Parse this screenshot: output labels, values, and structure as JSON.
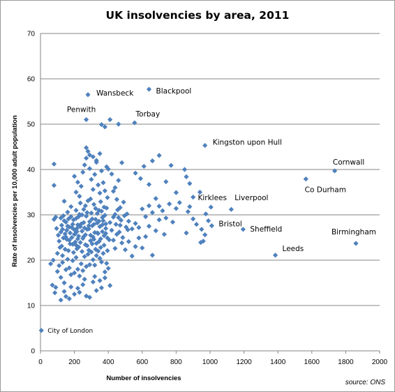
{
  "chart_data": {
    "type": "scatter",
    "title": "UK insolvencies by area, 2011",
    "xlabel": "Number of insolvencies",
    "ylabel": "Rate of insolvencies per 10,000 adult population",
    "source": "source: ONS",
    "xlim": [
      0,
      2000
    ],
    "ylim": [
      0,
      70
    ],
    "x_ticks": [
      0,
      200,
      400,
      600,
      800,
      1000,
      1200,
      1400,
      1600,
      1800,
      2000
    ],
    "y_ticks": [
      0,
      10,
      20,
      30,
      40,
      50,
      60,
      70
    ],
    "grid": "horizontal",
    "marker_color": "#4F81BD",
    "labeled_points": [
      {
        "label": "City of London",
        "x": 5,
        "y": 4.5
      },
      {
        "label": "Wansbeck",
        "x": 280,
        "y": 56.5
      },
      {
        "label": "Blackpool",
        "x": 640,
        "y": 57.7
      },
      {
        "label": "Penwith",
        "x": 270,
        "y": 51.0
      },
      {
        "label": "Torbay",
        "x": 555,
        "y": 50.3
      },
      {
        "label": "Kingston upon Hull",
        "x": 970,
        "y": 45.3
      },
      {
        "label": "Cornwall",
        "x": 1735,
        "y": 39.7
      },
      {
        "label": "Co Durham",
        "x": 1565,
        "y": 37.9
      },
      {
        "label": "Kirklees",
        "x": 1005,
        "y": 31.7
      },
      {
        "label": "Liverpool",
        "x": 1125,
        "y": 31.2
      },
      {
        "label": "Bristol",
        "x": 1010,
        "y": 27.6
      },
      {
        "label": "Sheffield",
        "x": 1195,
        "y": 26.8
      },
      {
        "label": "Birmingham",
        "x": 1860,
        "y": 23.7
      },
      {
        "label": "Leeds",
        "x": 1385,
        "y": 21.1
      }
    ],
    "points": [
      [
        80,
        36.5
      ],
      [
        80,
        41.2
      ],
      [
        75,
        20.0
      ],
      [
        60,
        19.2
      ],
      [
        70,
        14.5
      ],
      [
        90,
        14.0
      ],
      [
        85,
        12.8
      ],
      [
        80,
        29.0
      ],
      [
        90,
        29.5
      ],
      [
        100,
        21.5
      ],
      [
        95,
        27.0
      ],
      [
        105,
        25.5
      ],
      [
        110,
        24.2
      ],
      [
        115,
        22.8
      ],
      [
        120,
        26.2
      ],
      [
        125,
        23.1
      ],
      [
        130,
        21.0
      ],
      [
        135,
        29.8
      ],
      [
        140,
        33.0
      ],
      [
        145,
        25.8
      ],
      [
        150,
        28.4
      ],
      [
        155,
        24.6
      ],
      [
        160,
        30.6
      ],
      [
        165,
        22.1
      ],
      [
        170,
        27.3
      ],
      [
        175,
        26.0
      ],
      [
        180,
        31.8
      ],
      [
        185,
        25.0
      ],
      [
        190,
        23.5
      ],
      [
        195,
        28.9
      ],
      [
        200,
        26.7
      ],
      [
        205,
        24.0
      ],
      [
        210,
        29.2
      ],
      [
        215,
        22.5
      ],
      [
        220,
        27.8
      ],
      [
        225,
        25.3
      ],
      [
        230,
        30.1
      ],
      [
        235,
        23.9
      ],
      [
        240,
        28.0
      ],
      [
        245,
        26.4
      ],
      [
        250,
        24.8
      ],
      [
        255,
        31.2
      ],
      [
        260,
        27.1
      ],
      [
        265,
        25.6
      ],
      [
        270,
        29.7
      ],
      [
        275,
        23.2
      ],
      [
        280,
        33.1
      ],
      [
        285,
        26.9
      ],
      [
        290,
        28.5
      ],
      [
        295,
        24.3
      ],
      [
        300,
        30.4
      ],
      [
        305,
        27.6
      ],
      [
        310,
        25.1
      ],
      [
        315,
        32.3
      ],
      [
        320,
        26.1
      ],
      [
        325,
        29.0
      ],
      [
        330,
        23.7
      ],
      [
        335,
        28.2
      ],
      [
        340,
        25.9
      ],
      [
        345,
        31.0
      ],
      [
        350,
        27.4
      ],
      [
        355,
        24.7
      ],
      [
        360,
        30.8
      ],
      [
        365,
        26.3
      ],
      [
        370,
        28.7
      ],
      [
        375,
        25.4
      ],
      [
        380,
        29.9
      ],
      [
        385,
        27.0
      ],
      [
        390,
        31.5
      ],
      [
        395,
        24.9
      ],
      [
        100,
        17.5
      ],
      [
        110,
        18.8
      ],
      [
        120,
        16.2
      ],
      [
        130,
        19.5
      ],
      [
        140,
        15.0
      ],
      [
        150,
        17.9
      ],
      [
        160,
        20.2
      ],
      [
        170,
        18.3
      ],
      [
        180,
        16.8
      ],
      [
        190,
        19.9
      ],
      [
        200,
        17.2
      ],
      [
        210,
        20.6
      ],
      [
        220,
        18.0
      ],
      [
        230,
        16.5
      ],
      [
        240,
        19.2
      ],
      [
        250,
        17.7
      ],
      [
        260,
        20.8
      ],
      [
        270,
        18.6
      ],
      [
        280,
        21.3
      ],
      [
        290,
        19.0
      ],
      [
        300,
        21.8
      ],
      [
        310,
        20.1
      ],
      [
        320,
        18.9
      ],
      [
        330,
        21.0
      ],
      [
        340,
        22.0
      ],
      [
        350,
        20.4
      ],
      [
        360,
        19.6
      ],
      [
        370,
        21.5
      ],
      [
        380,
        17.4
      ],
      [
        390,
        19.3
      ],
      [
        150,
        12.0
      ],
      [
        170,
        11.5
      ],
      [
        200,
        12.5
      ],
      [
        220,
        13.8
      ],
      [
        250,
        14.6
      ],
      [
        270,
        12.1
      ],
      [
        290,
        11.8
      ],
      [
        310,
        15.2
      ],
      [
        330,
        13.3
      ],
      [
        360,
        13.9
      ],
      [
        120,
        11.2
      ],
      [
        140,
        13.1
      ],
      [
        180,
        14.1
      ],
      [
        230,
        12.9
      ],
      [
        260,
        15.8
      ],
      [
        320,
        16.4
      ],
      [
        350,
        15.5
      ],
      [
        380,
        16.1
      ],
      [
        400,
        18.2
      ],
      [
        410,
        14.4
      ],
      [
        200,
        38.5
      ],
      [
        210,
        35.0
      ],
      [
        220,
        37.2
      ],
      [
        230,
        34.1
      ],
      [
        240,
        36.3
      ],
      [
        250,
        39.4
      ],
      [
        260,
        41.0
      ],
      [
        270,
        42.5
      ],
      [
        280,
        44.0
      ],
      [
        290,
        40.2
      ],
      [
        300,
        37.8
      ],
      [
        310,
        35.6
      ],
      [
        320,
        38.9
      ],
      [
        330,
        42.0
      ],
      [
        340,
        36.6
      ],
      [
        350,
        34.8
      ],
      [
        360,
        39.7
      ],
      [
        370,
        37.1
      ],
      [
        380,
        35.3
      ],
      [
        390,
        40.6
      ],
      [
        270,
        44.8
      ],
      [
        290,
        43.2
      ],
      [
        310,
        42.8
      ],
      [
        330,
        41.6
      ],
      [
        350,
        43.5
      ],
      [
        400,
        40.1
      ],
      [
        420,
        39.0
      ],
      [
        440,
        36.0
      ],
      [
        460,
        37.6
      ],
      [
        480,
        41.5
      ],
      [
        360,
        49.9
      ],
      [
        380,
        49.4
      ],
      [
        410,
        51.0
      ],
      [
        460,
        50.0
      ],
      [
        430,
        35.2
      ],
      [
        450,
        33.4
      ],
      [
        470,
        31.6
      ],
      [
        490,
        32.8
      ],
      [
        510,
        30.2
      ],
      [
        520,
        28.6
      ],
      [
        410,
        28.3
      ],
      [
        420,
        26.6
      ],
      [
        430,
        24.4
      ],
      [
        440,
        22.6
      ],
      [
        450,
        25.7
      ],
      [
        460,
        29.4
      ],
      [
        470,
        27.7
      ],
      [
        480,
        23.8
      ],
      [
        500,
        22.3
      ],
      [
        520,
        24.1
      ],
      [
        540,
        26.9
      ],
      [
        560,
        28.1
      ],
      [
        580,
        27.2
      ],
      [
        600,
        31.3
      ],
      [
        620,
        29.6
      ],
      [
        640,
        32.0
      ],
      [
        660,
        30.5
      ],
      [
        680,
        33.6
      ],
      [
        700,
        31.9
      ],
      [
        720,
        30.9
      ],
      [
        540,
        20.9
      ],
      [
        560,
        23.0
      ],
      [
        580,
        24.9
      ],
      [
        600,
        22.7
      ],
      [
        620,
        25.2
      ],
      [
        640,
        27.5
      ],
      [
        660,
        21.1
      ],
      [
        680,
        26.5
      ],
      [
        700,
        28.9
      ],
      [
        730,
        25.7
      ],
      [
        560,
        39.2
      ],
      [
        590,
        38.0
      ],
      [
        610,
        40.7
      ],
      [
        640,
        36.7
      ],
      [
        660,
        41.9
      ],
      [
        700,
        43.1
      ],
      [
        740,
        37.3
      ],
      [
        770,
        40.9
      ],
      [
        800,
        34.9
      ],
      [
        820,
        32.7
      ],
      [
        850,
        40.0
      ],
      [
        860,
        38.4
      ],
      [
        880,
        36.9
      ],
      [
        900,
        33.9
      ],
      [
        940,
        35.0
      ],
      [
        870,
        30.7
      ],
      [
        800,
        31.4
      ],
      [
        780,
        28.4
      ],
      [
        760,
        32.4
      ],
      [
        740,
        29.3
      ],
      [
        950,
        26.8
      ],
      [
        960,
        24.2
      ],
      [
        970,
        25.6
      ],
      [
        945,
        23.9
      ],
      [
        975,
        30.2
      ],
      [
        990,
        28.7
      ],
      [
        920,
        27.9
      ],
      [
        900,
        29.1
      ],
      [
        880,
        31.8
      ],
      [
        860,
        26.0
      ],
      [
        430,
        29.5
      ],
      [
        440,
        30.1
      ],
      [
        445,
        27.9
      ],
      [
        455,
        31.1
      ],
      [
        465,
        26.2
      ],
      [
        475,
        28.8
      ],
      [
        485,
        25.0
      ],
      [
        495,
        29.8
      ],
      [
        505,
        27.3
      ],
      [
        515,
        26.7
      ],
      [
        210,
        31.0
      ],
      [
        215,
        27.0
      ],
      [
        225,
        29.6
      ],
      [
        235,
        32.6
      ],
      [
        245,
        30.0
      ],
      [
        255,
        28.3
      ],
      [
        265,
        32.0
      ],
      [
        275,
        30.5
      ],
      [
        285,
        27.6
      ],
      [
        295,
        33.5
      ],
      [
        305,
        29.1
      ],
      [
        315,
        27.9
      ],
      [
        325,
        31.4
      ],
      [
        335,
        30.3
      ],
      [
        345,
        28.6
      ],
      [
        355,
        32.9
      ],
      [
        365,
        29.4
      ],
      [
        375,
        31.7
      ],
      [
        385,
        28.0
      ],
      [
        395,
        33.8
      ],
      [
        130,
        26.8
      ],
      [
        140,
        28.7
      ],
      [
        150,
        25.1
      ],
      [
        160,
        27.5
      ],
      [
        170,
        24.4
      ],
      [
        180,
        29.6
      ],
      [
        190,
        27.9
      ],
      [
        200,
        25.7
      ],
      [
        210,
        23.3
      ],
      [
        220,
        24.7
      ],
      [
        120,
        29.3
      ],
      [
        125,
        27.7
      ],
      [
        135,
        24.9
      ],
      [
        145,
        22.4
      ],
      [
        155,
        26.6
      ],
      [
        165,
        29.1
      ],
      [
        175,
        23.6
      ],
      [
        185,
        27.2
      ],
      [
        195,
        21.7
      ],
      [
        205,
        25.8
      ],
      [
        215,
        26.3
      ],
      [
        225,
        22.9
      ],
      [
        235,
        27.4
      ],
      [
        245,
        21.9
      ],
      [
        255,
        25.2
      ],
      [
        265,
        23.4
      ],
      [
        275,
        26.8
      ],
      [
        285,
        22.2
      ],
      [
        295,
        25.5
      ],
      [
        305,
        23.6
      ],
      [
        315,
        24.6
      ],
      [
        325,
        22.4
      ],
      [
        335,
        26.0
      ],
      [
        345,
        24.1
      ],
      [
        355,
        22.8
      ],
      [
        365,
        27.8
      ],
      [
        375,
        23.3
      ],
      [
        385,
        25.9
      ],
      [
        395,
        22.1
      ],
      [
        405,
        24.5
      ]
    ]
  }
}
